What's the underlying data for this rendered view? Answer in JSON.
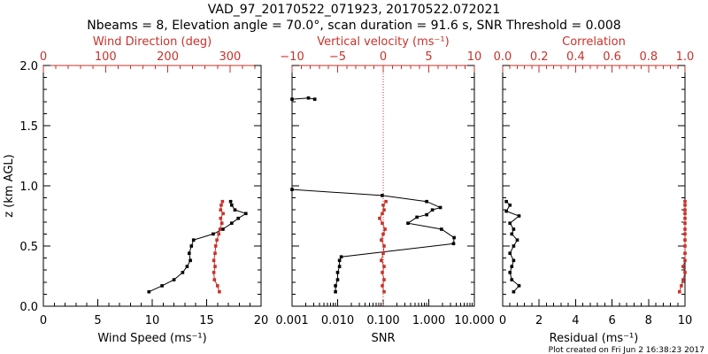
{
  "header": {
    "title": "VAD_97_20170522_071923, 20170522.072021",
    "subtitle": "Nbeams = 8, Elevation angle = 70.0°, scan duration = 91.6 s, SNR Threshold = 0.008"
  },
  "footer": {
    "plot_created": "Plot created on Fri Jun  2 16:38:23 2017"
  },
  "colors": {
    "black": "#000000",
    "red": "#c8322a"
  },
  "chart_data": [
    {
      "type": "line",
      "ylabel": "z (km AGL)",
      "ylim": [
        0,
        2
      ],
      "yticks": [
        "0.0",
        "0.5",
        "1.0",
        "1.5",
        "2.0"
      ],
      "bottom_axis": {
        "label": "Wind Speed (ms⁻¹)",
        "range": [
          0,
          20
        ],
        "ticks": [
          "0",
          "5",
          "10",
          "15",
          "20"
        ]
      },
      "top_axis": {
        "label": "Wind Direction (deg)",
        "range": [
          0,
          350
        ],
        "ticks": [
          "0",
          "100",
          "200",
          "300"
        ]
      },
      "series": [
        {
          "axis": "bottom",
          "color": "#000000",
          "points": [
            [
              9.7,
              0.12
            ],
            [
              10.9,
              0.17
            ],
            [
              12.0,
              0.22
            ],
            [
              12.8,
              0.28
            ],
            [
              13.2,
              0.33
            ],
            [
              13.5,
              0.38
            ],
            [
              13.4,
              0.44
            ],
            [
              13.6,
              0.5
            ],
            [
              13.8,
              0.55
            ],
            [
              15.6,
              0.6
            ],
            [
              16.5,
              0.64
            ],
            [
              17.3,
              0.69
            ],
            [
              17.9,
              0.73
            ],
            [
              18.6,
              0.77
            ],
            [
              17.6,
              0.8
            ],
            [
              17.3,
              0.84
            ],
            [
              17.2,
              0.87
            ]
          ]
        },
        {
          "axis": "top",
          "color": "#c8322a",
          "points": [
            [
              283,
              0.12
            ],
            [
              280,
              0.17
            ],
            [
              275,
              0.22
            ],
            [
              274,
              0.28
            ],
            [
              276,
              0.33
            ],
            [
              274,
              0.38
            ],
            [
              276,
              0.44
            ],
            [
              277,
              0.5
            ],
            [
              279,
              0.55
            ],
            [
              282,
              0.6
            ],
            [
              284,
              0.64
            ],
            [
              287,
              0.69
            ],
            [
              285,
              0.73
            ],
            [
              289,
              0.77
            ],
            [
              285,
              0.8
            ],
            [
              286,
              0.84
            ],
            [
              288,
              0.87
            ]
          ]
        }
      ]
    },
    {
      "type": "line",
      "bottom_axis": {
        "label": "SNR",
        "scale": "log",
        "range": [
          0.001,
          10
        ],
        "ticks": [
          "0.001",
          "0.010",
          "0.100",
          "1.000",
          "10.000"
        ]
      },
      "top_axis": {
        "label": "Vertical velocity (ms⁻¹)",
        "range": [
          -10,
          10
        ],
        "ticks": [
          "−10",
          "−5",
          "0",
          "5",
          "10"
        ]
      },
      "reference_line": {
        "axis": "top",
        "value": 0,
        "style": "dotted",
        "color": "#c8322a"
      },
      "series": [
        {
          "axis": "bottom",
          "color": "#000000",
          "points": [
            [
              0.009,
              0.12
            ],
            [
              0.009,
              0.17
            ],
            [
              0.01,
              0.22
            ],
            [
              0.01,
              0.28
            ],
            [
              0.011,
              0.33
            ],
            [
              0.011,
              0.38
            ],
            [
              0.012,
              0.41
            ],
            [
              3.5,
              0.52
            ],
            [
              3.6,
              0.57
            ],
            [
              1.9,
              0.64
            ],
            [
              0.35,
              0.69
            ],
            [
              0.55,
              0.74
            ],
            [
              0.9,
              0.76
            ],
            [
              1.2,
              0.8
            ],
            [
              1.8,
              0.82
            ],
            [
              0.9,
              0.87
            ],
            [
              0.095,
              0.92
            ],
            [
              0.001,
              0.97
            ]
          ]
        },
        {
          "axis": "top",
          "color": "#000000",
          "points": [
            [
              -7.5,
              1.72
            ],
            [
              -8.2,
              1.73
            ],
            [
              -10,
              1.72
            ]
          ]
        },
        {
          "axis": "top",
          "color": "#c8322a",
          "points": [
            [
              0.1,
              0.12
            ],
            [
              -0.1,
              0.17
            ],
            [
              0.1,
              0.22
            ],
            [
              -0.1,
              0.28
            ],
            [
              0.1,
              0.33
            ],
            [
              -0.2,
              0.38
            ],
            [
              0.0,
              0.44
            ],
            [
              0.1,
              0.5
            ],
            [
              -0.2,
              0.55
            ],
            [
              0.0,
              0.6
            ],
            [
              0.2,
              0.64
            ],
            [
              -0.1,
              0.69
            ],
            [
              -0.4,
              0.73
            ],
            [
              -0.1,
              0.77
            ],
            [
              0.1,
              0.8
            ],
            [
              0.0,
              0.84
            ],
            [
              0.3,
              0.87
            ]
          ]
        }
      ]
    },
    {
      "type": "line",
      "bottom_axis": {
        "label": "Residual (ms⁻¹)",
        "range": [
          0,
          10
        ],
        "ticks": [
          "0",
          "2",
          "4",
          "6",
          "8",
          "10"
        ]
      },
      "top_axis": {
        "label": "Correlation",
        "range": [
          0,
          1
        ],
        "ticks": [
          "0.0",
          "0.2",
          "0.4",
          "0.6",
          "0.8",
          "1.0"
        ]
      },
      "series": [
        {
          "axis": "bottom",
          "color": "#000000",
          "points": [
            [
              0.6,
              0.12
            ],
            [
              0.9,
              0.17
            ],
            [
              0.5,
              0.22
            ],
            [
              0.4,
              0.28
            ],
            [
              0.5,
              0.33
            ],
            [
              0.6,
              0.38
            ],
            [
              0.4,
              0.44
            ],
            [
              0.6,
              0.5
            ],
            [
              0.8,
              0.55
            ],
            [
              0.5,
              0.6
            ],
            [
              0.6,
              0.64
            ],
            [
              0.4,
              0.69
            ],
            [
              0.9,
              0.75
            ],
            [
              0.2,
              0.79
            ],
            [
              0.4,
              0.84
            ],
            [
              0.2,
              0.87
            ]
          ]
        },
        {
          "axis": "top",
          "color": "#c8322a",
          "points": [
            [
              0.97,
              0.12
            ],
            [
              0.98,
              0.17
            ],
            [
              0.99,
              0.22
            ],
            [
              1.0,
              0.28
            ],
            [
              0.99,
              0.33
            ],
            [
              1.0,
              0.38
            ],
            [
              1.0,
              0.44
            ],
            [
              1.0,
              0.5
            ],
            [
              1.0,
              0.55
            ],
            [
              1.0,
              0.6
            ],
            [
              1.0,
              0.64
            ],
            [
              1.0,
              0.69
            ],
            [
              1.0,
              0.73
            ],
            [
              1.0,
              0.77
            ],
            [
              1.0,
              0.8
            ],
            [
              1.0,
              0.84
            ],
            [
              1.0,
              0.87
            ]
          ]
        }
      ]
    }
  ]
}
